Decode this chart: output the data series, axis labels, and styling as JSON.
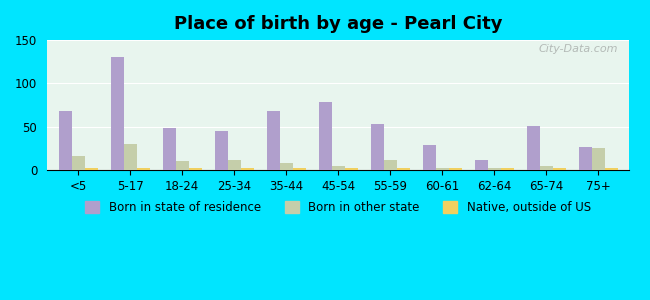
{
  "title": "Place of birth by age - Pearl City",
  "categories": [
    "<5",
    "5-17",
    "18-24",
    "25-34",
    "35-44",
    "45-54",
    "55-59",
    "60-61",
    "62-64",
    "65-74",
    "75+"
  ],
  "born_in_state": [
    68,
    130,
    48,
    45,
    68,
    78,
    53,
    29,
    11,
    51,
    27
  ],
  "born_other_state": [
    16,
    30,
    10,
    11,
    8,
    5,
    12,
    2,
    2,
    5,
    25
  ],
  "native_outside_us": [
    2,
    2,
    2,
    2,
    2,
    2,
    2,
    2,
    2,
    2,
    2
  ],
  "color_state": "#b09fcc",
  "color_other": "#c5ceaa",
  "color_native": "#f0d060",
  "ylim": [
    0,
    150
  ],
  "yticks": [
    0,
    50,
    100,
    150
  ],
  "background_outer": "#00e5ff",
  "background_plot": "#e8f5ee",
  "legend_labels": [
    "Born in state of residence",
    "Born in other state",
    "Native, outside of US"
  ],
  "watermark": "City-Data.com",
  "bar_width": 0.25
}
